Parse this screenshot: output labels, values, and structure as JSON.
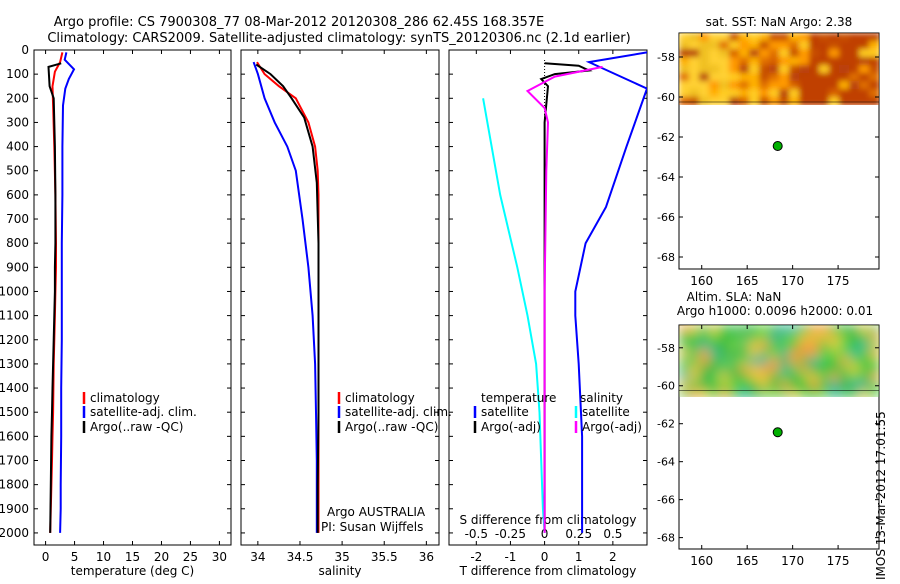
{
  "title": {
    "line1": "Argo profile: CS 7900308_77 08-Mar-2012 20120308_286 62.45S 168.357E",
    "line2": "Climatology: CARS2009. Satellite-adjusted climatology: synTS_20120306.nc (2.1d earlier)"
  },
  "side_stamp": "IMOS 13-Mar-2012 17:01:55",
  "depth_ticks": [
    0,
    100,
    200,
    300,
    400,
    500,
    600,
    700,
    800,
    900,
    1000,
    1100,
    1200,
    1300,
    1400,
    1500,
    1600,
    1700,
    1800,
    1900,
    2000
  ],
  "colors": {
    "climatology": "#ff0000",
    "satellite": "#0000ff",
    "argo": "#000000",
    "salinity_sat": "#00ffff",
    "salinity_argo": "#ff00ff"
  },
  "chart_data": [
    {
      "type": "line",
      "xlabel": "temperature (deg C)",
      "xlim": [
        -2,
        32
      ],
      "ylim": [
        0,
        2050
      ],
      "xticks": [
        0,
        5,
        10,
        15,
        20,
        25,
        30
      ],
      "legend": [
        "climatology",
        "satellite-adj. clim.",
        "Argo(..raw -QC)"
      ],
      "series": [
        {
          "name": "climatology",
          "color": "#ff0000",
          "x": [
            2.9,
            2.5,
            1.6,
            1.2,
            1.3,
            1.5,
            1.7,
            1.8,
            1.8,
            1.7,
            1.6,
            1.5,
            1.4,
            1.3,
            1.2,
            1.1,
            1.0,
            0.9,
            0.8
          ],
          "y": [
            10,
            50,
            90,
            150,
            230,
            400,
            600,
            800,
            900,
            1000,
            1100,
            1200,
            1300,
            1500,
            1600,
            1700,
            1800,
            1900,
            2000
          ]
        },
        {
          "name": "satellite-adj. clim.",
          "color": "#0000ff",
          "x": [
            3.6,
            3.3,
            4.9,
            4.0,
            3.4,
            3.0,
            2.9,
            2.9,
            2.8,
            2.8,
            2.8,
            2.7,
            2.7,
            2.6,
            2.6,
            2.5
          ],
          "y": [
            10,
            40,
            80,
            120,
            160,
            230,
            400,
            600,
            800,
            1000,
            1200,
            1400,
            1600,
            1800,
            1900,
            2000
          ]
        },
        {
          "name": "Argo(..raw -QC)",
          "color": "#000000",
          "x": [
            2.7,
            0.5,
            0.7,
            1.4,
            1.6,
            1.7,
            1.7,
            1.6,
            1.6,
            1.5,
            1.4,
            1.3,
            1.2,
            1.1,
            1.0,
            0.9,
            0.8
          ],
          "y": [
            55,
            70,
            150,
            200,
            400,
            600,
            800,
            900,
            1000,
            1100,
            1200,
            1300,
            1400,
            1500,
            1600,
            1800,
            2000
          ]
        }
      ],
      "annotations": []
    },
    {
      "type": "line",
      "xlabel": "salinity",
      "xlim": [
        33.8,
        36.15
      ],
      "ylim": [
        0,
        2050
      ],
      "xticks": [
        34,
        34.5,
        35,
        35.5,
        36
      ],
      "legend": [
        "climatology",
        "satellite-adj. clim.",
        "Argo(..raw -QC)"
      ],
      "series": [
        {
          "name": "climatology",
          "color": "#ff0000",
          "x": [
            33.99,
            34.08,
            34.25,
            34.45,
            34.6,
            34.68,
            34.71,
            34.72,
            34.72,
            34.72,
            34.72,
            34.72
          ],
          "y": [
            50,
            100,
            150,
            200,
            300,
            400,
            500,
            600,
            800,
            1000,
            1500,
            2000
          ]
        },
        {
          "name": "satellite-adj. clim.",
          "color": "#0000ff",
          "x": [
            33.95,
            34.0,
            34.08,
            34.2,
            34.35,
            34.45,
            34.53,
            34.6,
            34.65,
            34.68,
            34.69,
            34.7,
            34.7
          ],
          "y": [
            50,
            100,
            200,
            300,
            400,
            500,
            700,
            900,
            1100,
            1300,
            1500,
            1700,
            2000
          ]
        },
        {
          "name": "Argo(..raw -QC)",
          "color": "#000000",
          "x": [
            33.98,
            34.15,
            34.3,
            34.4,
            34.55,
            34.65,
            34.7,
            34.72,
            34.72,
            34.72,
            34.71,
            34.71
          ],
          "y": [
            60,
            100,
            150,
            200,
            280,
            400,
            550,
            800,
            1000,
            1500,
            1800,
            2000
          ]
        }
      ],
      "annotations": [
        "Argo AUSTRALIA",
        "PI: Susan Wijffels"
      ]
    },
    {
      "type": "line",
      "xlabel": "T difference from climatology",
      "top_label": "S difference from climatology",
      "xlim": [
        -2.8,
        3.0
      ],
      "ylim": [
        0,
        2050
      ],
      "xticks": [
        -2,
        -1,
        0,
        1,
        2
      ],
      "xticklabels": [
        "-2",
        "-1",
        "0",
        "1",
        "2"
      ],
      "top_ticks": [
        -2,
        -1,
        0,
        1,
        2
      ],
      "top_ticklabels": [
        "-0.5",
        "-0.25",
        "0",
        "0.25",
        "0.5"
      ],
      "legend": [
        "temperature",
        "salinity",
        "satellite",
        "Argo(-adj)"
      ],
      "series": [
        {
          "name": "T satellite",
          "color": "#0000ff",
          "x": [
            3.0,
            1.3,
            3.0,
            2.4,
            1.8,
            1.2,
            0.9,
            0.9,
            1.0,
            1.1,
            1.1,
            1.1
          ],
          "y": [
            10,
            50,
            160,
            400,
            650,
            800,
            1000,
            1100,
            1300,
            1600,
            1800,
            2000
          ]
        },
        {
          "name": "T Argo(-adj)",
          "color": "#000000",
          "x": [
            0.0,
            1.0,
            1.3,
            0.3,
            -0.1,
            0.1,
            0.0,
            0.0,
            0.0,
            0.0
          ],
          "y": [
            55,
            65,
            85,
            100,
            120,
            150,
            300,
            800,
            1500,
            2000
          ]
        },
        {
          "name": "S satellite",
          "color": "#00ffff",
          "x": [
            -1.8,
            -1.3,
            -0.8,
            -0.5,
            -0.25,
            -0.15,
            -0.1,
            -0.05,
            0.0
          ],
          "y": [
            200,
            600,
            900,
            1100,
            1300,
            1500,
            1700,
            1900,
            2000
          ]
        },
        {
          "name": "S Argo(-adj)",
          "color": "#ff00ff",
          "x": [
            1.7,
            0.3,
            -0.5,
            0.0,
            0.1,
            0.05,
            0.0,
            0.0
          ],
          "y": [
            70,
            110,
            170,
            240,
            300,
            500,
            1000,
            2000
          ]
        }
      ],
      "annotations": []
    }
  ],
  "maps": {
    "sst": {
      "title": "sat. SST: NaN Argo: 2.38",
      "lat_ticks": [
        -58,
        -60,
        -62,
        -64,
        -66,
        -68
      ],
      "lon_ticks": [
        160,
        165,
        170,
        175
      ],
      "argo_position": {
        "lon": 168.357,
        "lat": -62.45
      }
    },
    "sla": {
      "title_line1": "Altim. SLA: NaN",
      "title_line2": "Argo h1000: 0.0096 h2000: 0.01",
      "lat_ticks": [
        -58,
        -60,
        -62,
        -64,
        -66,
        -68
      ],
      "lon_ticks": [
        160,
        165,
        170,
        175
      ],
      "argo_position": {
        "lon": 168.357,
        "lat": -62.45
      }
    }
  }
}
